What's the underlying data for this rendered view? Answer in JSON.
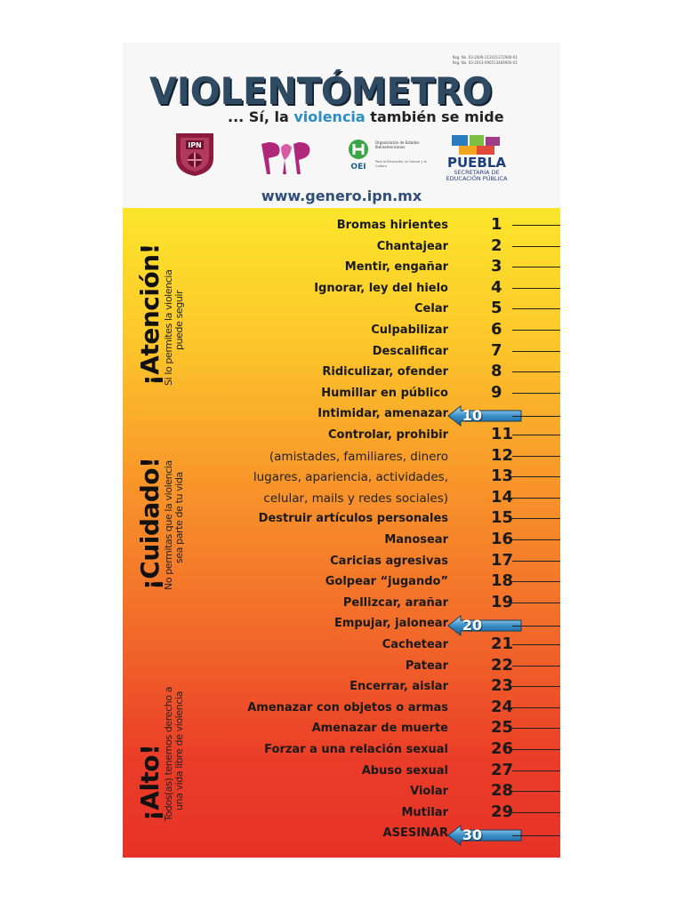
{
  "header": {
    "reg_line_1": "Reg. No. 03-2009-112011372900-01",
    "reg_line_2": "Reg. No. 03-2013-090513464900-01",
    "title": "VIOLENTÓMETRO",
    "subtitle_pre": "... Sí, la ",
    "subtitle_hl": "violencia",
    "subtitle_post": " también se mide",
    "oei_text_1": "Organización de Estados Iberoamericanos",
    "oei_text_2": "Para la Educación, la Ciencia y la Cultura",
    "oei_label": "OEI",
    "puebla_label": "PUEBLA",
    "puebla_sub_1": "SECRETARÍA DE",
    "puebla_sub_2": "EDUCACIÓN PÚBLICA",
    "url": "www.genero.ipn.mx",
    "colors": {
      "title": "#2f4a63",
      "accent": "#2a8ec4",
      "ipn": "#8a1a3e",
      "poli": "#b0287a",
      "oei": "#3aa645"
    }
  },
  "sections": [
    {
      "title": "¡Atención!",
      "line_1": "Si lo permites la violencia",
      "line_2": "puede seguir"
    },
    {
      "title": "¡Cuidado!",
      "line_1": "No permitas que la violencia",
      "line_2": "sea parte de tu vida"
    },
    {
      "title": "¡Alto!",
      "line_1": "Todos(as) tenemos derecho a",
      "line_2": "una vida libre de violencia"
    }
  ],
  "items": [
    {
      "n": "1",
      "label": "Bromas hirientes"
    },
    {
      "n": "2",
      "label": "Chantajear"
    },
    {
      "n": "3",
      "label": "Mentir, engañar"
    },
    {
      "n": "4",
      "label": "Ignorar, ley del hielo"
    },
    {
      "n": "5",
      "label": "Celar"
    },
    {
      "n": "6",
      "label": "Culpabilizar"
    },
    {
      "n": "7",
      "label": "Descalificar"
    },
    {
      "n": "8",
      "label": "Ridiculizar, ofender"
    },
    {
      "n": "9",
      "label": "Humillar en público"
    },
    {
      "n": "10",
      "label": "Intimidar, amenazar"
    },
    {
      "n": "11",
      "label": "Controlar, prohibir"
    },
    {
      "n": "12",
      "label": "(amistades, familiares, dinero"
    },
    {
      "n": "13",
      "label": "lugares, apariencia, actividades,"
    },
    {
      "n": "14",
      "label": "celular, mails y redes sociales)"
    },
    {
      "n": "15",
      "label": "Destruir artículos personales"
    },
    {
      "n": "16",
      "label": "Manosear"
    },
    {
      "n": "17",
      "label": "Caricias agresivas"
    },
    {
      "n": "18",
      "label": "Golpear “jugando”"
    },
    {
      "n": "19",
      "label": "Pellizcar, arañar"
    },
    {
      "n": "20",
      "label": "Empujar, jalonear"
    },
    {
      "n": "21",
      "label": "Cachetear"
    },
    {
      "n": "22",
      "label": "Patear"
    },
    {
      "n": "23",
      "label": "Encerrar, aislar"
    },
    {
      "n": "24",
      "label": "Amenazar con objetos o armas"
    },
    {
      "n": "25",
      "label": "Amenazar de muerte"
    },
    {
      "n": "26",
      "label": "Forzar a una relación sexual"
    },
    {
      "n": "27",
      "label": "Abuso sexual"
    },
    {
      "n": "28",
      "label": "Violar"
    },
    {
      "n": "29",
      "label": "Mutilar"
    },
    {
      "n": "30",
      "label": "ASESINAR"
    }
  ],
  "milestones": [
    "10",
    "20",
    "30"
  ]
}
